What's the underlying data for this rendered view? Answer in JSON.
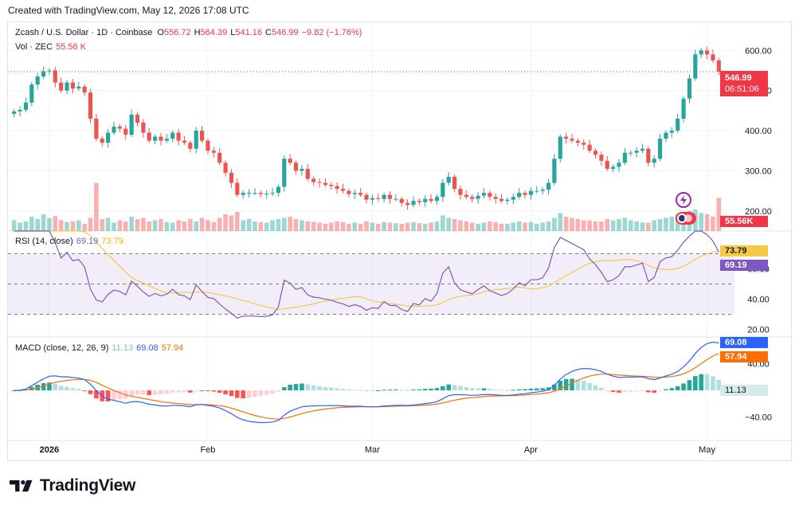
{
  "header": {
    "created": "Created with TradingView.com, May 12, 2026 17:08 UTC"
  },
  "legend": {
    "symbol": "Zcash / U.S. Dollar · 1D · Coinbase",
    "o_label": "O",
    "o_value": "556.72",
    "h_label": "H",
    "h_value": "564.39",
    "l_label": "L",
    "l_value": "541.16",
    "c_label": "C",
    "c_value": "546.99",
    "change": "−9.82 (−1.76%)",
    "vol_label": "Vol · ZEC",
    "vol_value": "55.56 K"
  },
  "price_tag": {
    "price": "546.99",
    "countdown": "06:51:06"
  },
  "volume_tag": "55.56K",
  "rsi_legend": {
    "title": "RSI (14, close)",
    "rsi": "69.19",
    "ma": "73.79"
  },
  "macd_legend": {
    "title": "MACD (close, 12, 26, 9)",
    "hist": "11.13",
    "macd": "69.08",
    "signal": "57.94"
  },
  "footer": {
    "brand": "TradingView"
  },
  "colors": {
    "up": "#26a69a",
    "down": "#ef5350",
    "rsi_line": "#7e57c2",
    "rsi_ma": "#f7c948",
    "macd_line": "#2962ff",
    "signal_line": "#ff6d00",
    "grid": "#f0f3fa",
    "axis_text": "#131722"
  },
  "chart_data": {
    "type": "candlestick",
    "symbol": "ZEC/USD",
    "interval": "1D",
    "x_ticks": [
      "2026",
      "Feb",
      "Mar",
      "Apr",
      "May"
    ],
    "price_axis": {
      "ticks": [
        "600.00",
        "500.00",
        "400.00",
        "300.00",
        "200.00"
      ],
      "range": [
        150,
        670
      ]
    },
    "rsi_axis": {
      "ticks": [
        "60.00",
        "40.00",
        "20.00"
      ],
      "upper_band": 70,
      "middle": 50,
      "lower_band": 30,
      "range": [
        15,
        85
      ]
    },
    "macd_axis": {
      "ticks": [
        "40.00",
        "0.00",
        "−40.00"
      ],
      "range": [
        -75,
        80
      ]
    },
    "closes": [
      448,
      452,
      470,
      515,
      535,
      548,
      550,
      520,
      500,
      520,
      505,
      510,
      495,
      430,
      380,
      370,
      395,
      410,
      405,
      390,
      440,
      420,
      395,
      375,
      385,
      375,
      380,
      395,
      375,
      370,
      355,
      400,
      375,
      350,
      345,
      320,
      295,
      270,
      240,
      245,
      245,
      245,
      242,
      243,
      245,
      260,
      330,
      320,
      300,
      305,
      280,
      272,
      270,
      265,
      262,
      255,
      250,
      242,
      245,
      240,
      228,
      232,
      230,
      240,
      230,
      230,
      220,
      215,
      225,
      222,
      230,
      225,
      235,
      270,
      285,
      255,
      240,
      235,
      230,
      238,
      245,
      235,
      230,
      225,
      228,
      235,
      245,
      240,
      250,
      250,
      253,
      270,
      330,
      385,
      380,
      375,
      370,
      365,
      350,
      340,
      325,
      305,
      310,
      320,
      345,
      345,
      350,
      355,
      320,
      330,
      380,
      395,
      400,
      430,
      480,
      530,
      590,
      600,
      590,
      575,
      546.99
    ],
    "volume_k": [
      18,
      14,
      16,
      24,
      20,
      28,
      22,
      25,
      18,
      15,
      16,
      18,
      12,
      22,
      80,
      20,
      22,
      14,
      18,
      16,
      24,
      20,
      22,
      16,
      18,
      20,
      15,
      14,
      18,
      16,
      20,
      16,
      22,
      18,
      15,
      22,
      28,
      26,
      32,
      18,
      20,
      16,
      15,
      14,
      18,
      20,
      22,
      24,
      20,
      18,
      16,
      15,
      14,
      12,
      14,
      16,
      15,
      12,
      14,
      12,
      16,
      14,
      12,
      15,
      14,
      13,
      12,
      14,
      15,
      13,
      12,
      14,
      16,
      26,
      22,
      20,
      18,
      16,
      14,
      12,
      14,
      16,
      15,
      12,
      12,
      14,
      16,
      14,
      15,
      12,
      14,
      16,
      22,
      30,
      24,
      22,
      20,
      18,
      18,
      16,
      16,
      20,
      18,
      20,
      22,
      18,
      16,
      14,
      14,
      18,
      20,
      22,
      24,
      28,
      32,
      34,
      36,
      30,
      28,
      24,
      55.56
    ],
    "rsi": {
      "last": 69.19,
      "ma_last": 73.79
    },
    "macd": {
      "macd_last": 69.08,
      "signal_last": 57.94,
      "histogram_last": 11.13
    }
  }
}
